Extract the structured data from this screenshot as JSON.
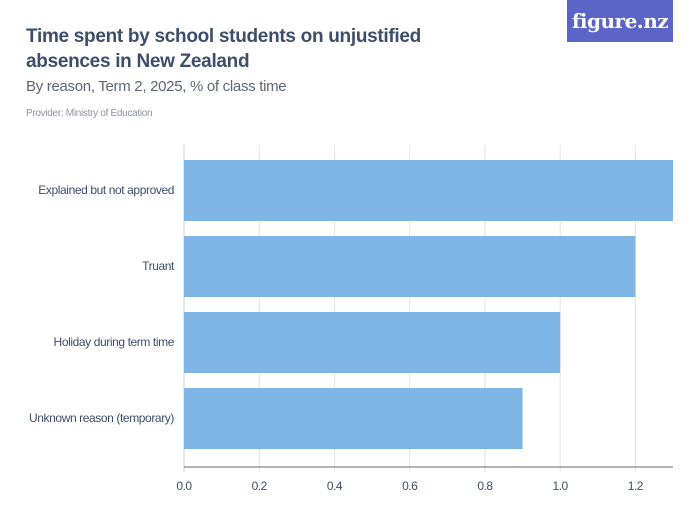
{
  "header": {
    "title": "Time spent by school students on unjustified absences in New Zealand",
    "subtitle": "By reason, Term 2, 2025, % of class time",
    "provider": "Provider: Ministry of Education",
    "logo": "figure.nz"
  },
  "colors": {
    "bar": "#7eb5e4",
    "logo_bg": "#5b64c7",
    "text": "#3e4d6b"
  },
  "chart_data": {
    "type": "bar",
    "orientation": "horizontal",
    "title": "Time spent by school students on unjustified absences in New Zealand",
    "subtitle": "By reason, Term 2, 2025, % of class time",
    "categories": [
      "Explained but not approved",
      "Truant",
      "Holiday during term time",
      "Unknown reason (temporary)"
    ],
    "values": [
      1.3,
      1.2,
      1.0,
      0.9
    ],
    "xlabel": "",
    "ylabel": "",
    "xlim": [
      0,
      1.3
    ],
    "xticks": [
      "0.0",
      "0.2",
      "0.4",
      "0.6",
      "0.8",
      "1.0",
      "1.2"
    ],
    "grid": true,
    "legend": "none"
  }
}
